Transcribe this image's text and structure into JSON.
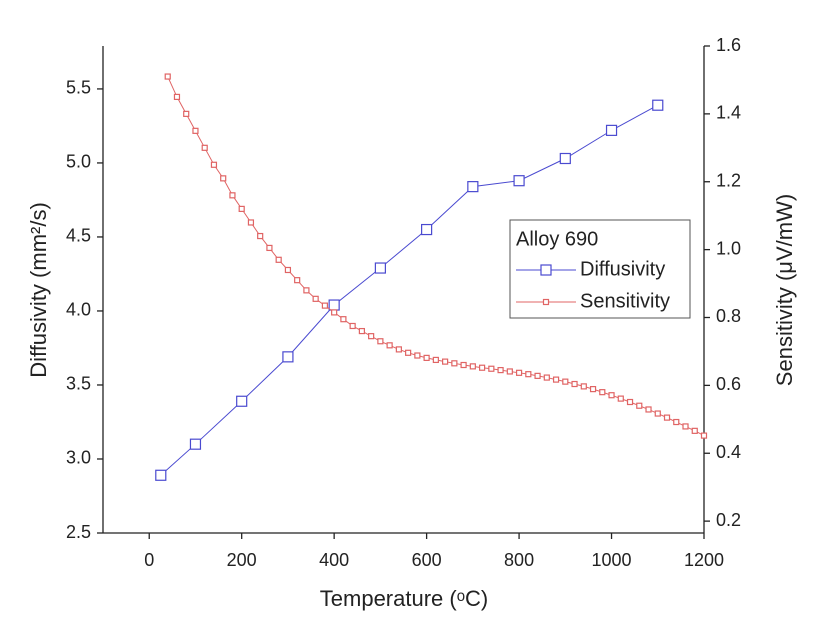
{
  "chart_data": {
    "type": "line",
    "x_label": "Temperature (ᵒC)",
    "y_label": "Diffusivity (mm²/s)",
    "y2_label": "Sensitivity (μV/mW)",
    "legend_title": "Alloy 690",
    "legend_position": "right",
    "xlim": [
      -100,
      1200
    ],
    "xticks": [
      0,
      200,
      400,
      600,
      800,
      1000,
      1200
    ],
    "ylim": [
      2.5,
      5.79
    ],
    "yticks": [
      2.5,
      {
        "value": 3,
        "label": "3.0"
      },
      3.5,
      {
        "value": 4,
        "label": "4.0"
      },
      4.5,
      {
        "value": 5,
        "label": "5.0"
      },
      5.5
    ],
    "y2lim": [
      0.165,
      1.6
    ],
    "y2ticks": [
      0.2,
      0.4,
      0.6,
      0.8,
      {
        "value": 1,
        "label": "1.0"
      },
      1.2,
      1.4,
      1.6
    ],
    "series": [
      {
        "name": "Diffusivity",
        "color": "#4a4ad0",
        "marker": "square-large",
        "x": [
          25,
          100,
          200,
          300,
          400,
          500,
          600,
          700,
          800,
          900,
          1000,
          1100
        ],
        "values": [
          2.89,
          3.1,
          3.39,
          3.69,
          4.04,
          4.29,
          4.55,
          4.84,
          4.88,
          5.03,
          5.22,
          5.39
        ]
      },
      {
        "name": "Sensitivity",
        "color": "#e06464",
        "marker": "square-small",
        "axis": "y2",
        "x": [
          40,
          60,
          80,
          100,
          120,
          140,
          160,
          180,
          200,
          220,
          240,
          260,
          280,
          300,
          320,
          340,
          360,
          380,
          400,
          420,
          440,
          460,
          480,
          500,
          520,
          540,
          560,
          580,
          600,
          620,
          640,
          660,
          680,
          700,
          720,
          740,
          760,
          780,
          800,
          820,
          840,
          860,
          880,
          900,
          920,
          940,
          960,
          980,
          1000,
          1020,
          1040,
          1060,
          1080,
          1100,
          1120,
          1140,
          1160,
          1180,
          1200
        ],
        "values": [
          1.51,
          1.45,
          1.4,
          1.35,
          1.3,
          1.25,
          1.21,
          1.16,
          1.12,
          1.08,
          1.04,
          1.005,
          0.97,
          0.94,
          0.91,
          0.88,
          0.855,
          0.835,
          0.815,
          0.795,
          0.775,
          0.76,
          0.745,
          0.73,
          0.718,
          0.706,
          0.696,
          0.688,
          0.681,
          0.675,
          0.67,
          0.665,
          0.66,
          0.656,
          0.652,
          0.649,
          0.645,
          0.641,
          0.637,
          0.633,
          0.628,
          0.623,
          0.617,
          0.611,
          0.604,
          0.597,
          0.589,
          0.58,
          0.571,
          0.561,
          0.551,
          0.54,
          0.529,
          0.517,
          0.505,
          0.492,
          0.479,
          0.466,
          0.452
        ]
      }
    ]
  }
}
